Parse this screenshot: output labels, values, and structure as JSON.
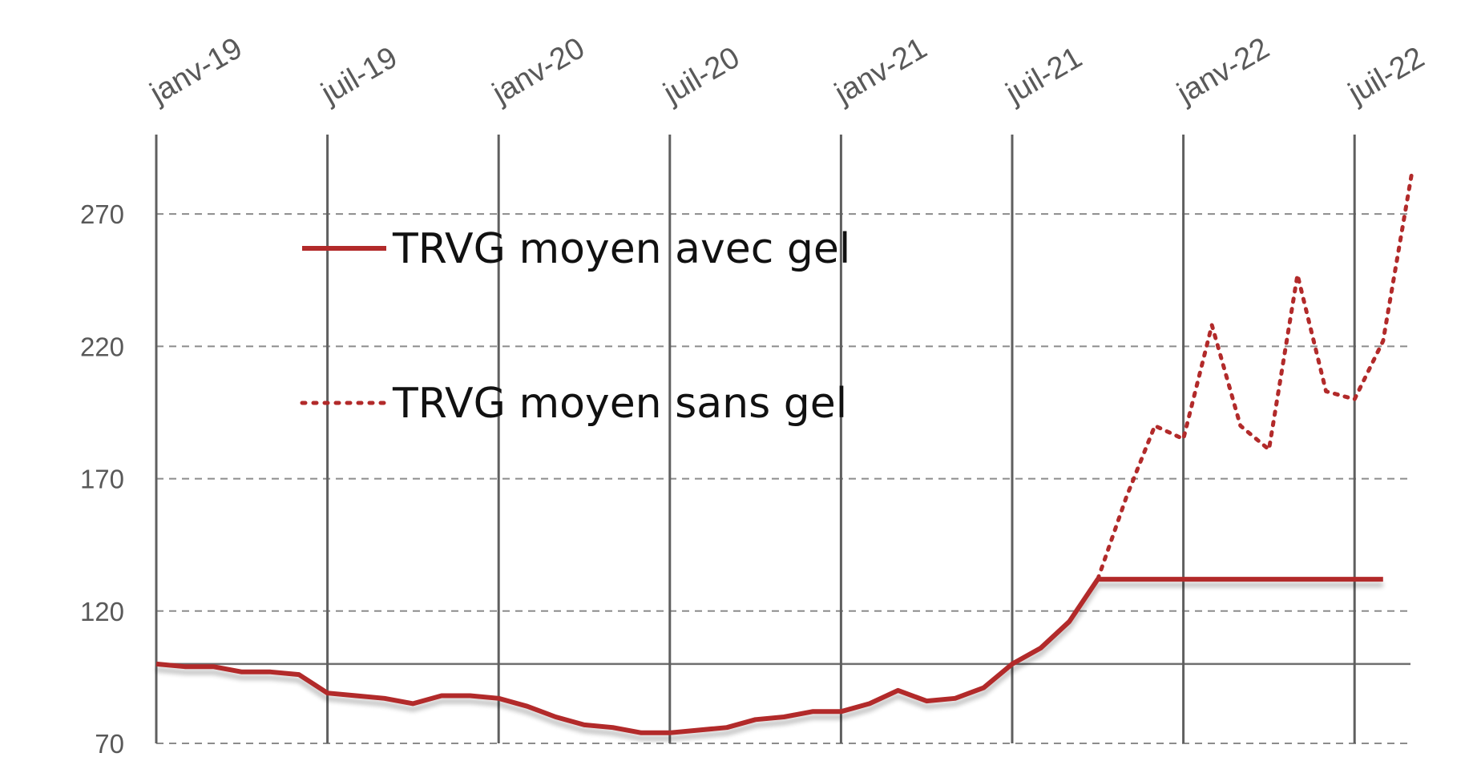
{
  "chart_data": {
    "type": "line",
    "title": "",
    "xlabel": "",
    "ylabel": "",
    "x_tick_labels": [
      "janv-19",
      "juil-19",
      "janv-20",
      "juil-20",
      "janv-21",
      "juil-21",
      "janv-22",
      "juil-22"
    ],
    "y_ticks": [
      70,
      120,
      170,
      220,
      270
    ],
    "ylim": [
      70,
      300
    ],
    "xlim": [
      "2019-01",
      "2022-08"
    ],
    "grid": {
      "vertical": "solid",
      "horizontal": "dashed",
      "reference_line_y": 100
    },
    "legend_position": "top-left (inside plot)",
    "series": [
      {
        "name": "TRVG moyen avec gel",
        "style": "solid",
        "color": "#b22a2a",
        "points": [
          [
            "2019-01",
            100
          ],
          [
            "2019-02",
            99
          ],
          [
            "2019-03",
            99
          ],
          [
            "2019-04",
            97
          ],
          [
            "2019-05",
            97
          ],
          [
            "2019-06",
            96
          ],
          [
            "2019-07",
            89
          ],
          [
            "2019-08",
            88
          ],
          [
            "2019-09",
            87
          ],
          [
            "2019-10",
            85
          ],
          [
            "2019-11",
            88
          ],
          [
            "2019-12",
            88
          ],
          [
            "2020-01",
            87
          ],
          [
            "2020-02",
            84
          ],
          [
            "2020-03",
            80
          ],
          [
            "2020-04",
            77
          ],
          [
            "2020-05",
            76
          ],
          [
            "2020-06",
            74
          ],
          [
            "2020-07",
            74
          ],
          [
            "2020-08",
            75
          ],
          [
            "2020-09",
            76
          ],
          [
            "2020-10",
            79
          ],
          [
            "2020-11",
            80
          ],
          [
            "2020-12",
            82
          ],
          [
            "2021-01",
            82
          ],
          [
            "2021-02",
            85
          ],
          [
            "2021-03",
            90
          ],
          [
            "2021-04",
            86
          ],
          [
            "2021-05",
            87
          ],
          [
            "2021-06",
            91
          ],
          [
            "2021-07",
            100
          ],
          [
            "2021-08",
            106
          ],
          [
            "2021-09",
            116
          ],
          [
            "2021-10",
            132
          ],
          [
            "2021-11",
            132
          ],
          [
            "2021-12",
            132
          ],
          [
            "2022-01",
            132
          ],
          [
            "2022-02",
            132
          ],
          [
            "2022-03",
            132
          ],
          [
            "2022-04",
            132
          ],
          [
            "2022-05",
            132
          ],
          [
            "2022-06",
            132
          ],
          [
            "2022-07",
            132
          ],
          [
            "2022-08",
            132
          ]
        ]
      },
      {
        "name": "TRVG moyen sans gel",
        "style": "dotted",
        "color": "#b22a2a",
        "points": [
          [
            "2021-10",
            132
          ],
          [
            "2021-11",
            163
          ],
          [
            "2021-12",
            190
          ],
          [
            "2022-01",
            185
          ],
          [
            "2022-02",
            228
          ],
          [
            "2022-03",
            190
          ],
          [
            "2022-04",
            181
          ],
          [
            "2022-05",
            247
          ],
          [
            "2022-06",
            203
          ],
          [
            "2022-07",
            200
          ],
          [
            "2022-08",
            222
          ],
          [
            "2022-09",
            285
          ]
        ]
      }
    ]
  }
}
